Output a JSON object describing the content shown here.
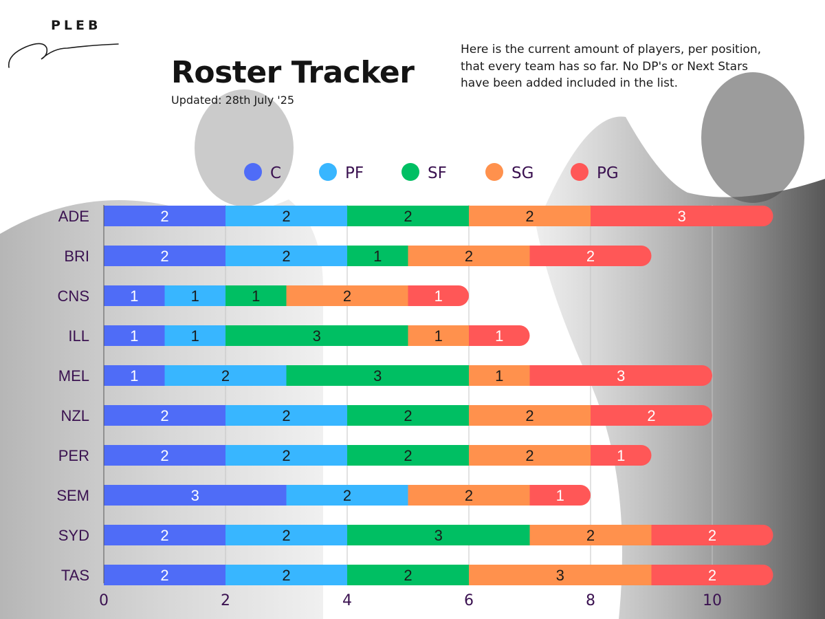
{
  "header": {
    "brand": "PLEB",
    "title": "Roster Tracker",
    "updated": "Updated: 28th July '25",
    "description_lines": [
      "Here is the current amount of players, per position,",
      "that every team has so far. No DP's or Next Stars",
      "have been added included in the list."
    ]
  },
  "chart_data": {
    "type": "bar",
    "orientation": "horizontal",
    "stacked": true,
    "title": "Roster Tracker",
    "legend_position": "top",
    "categories": [
      "ADE",
      "BRI",
      "CNS",
      "ILL",
      "MEL",
      "NZL",
      "PER",
      "SEM",
      "SYD",
      "TAS"
    ],
    "series": [
      {
        "name": "C",
        "color": "#4f6cf7",
        "values": [
          2,
          2,
          1,
          1,
          1,
          2,
          2,
          3,
          2,
          2
        ]
      },
      {
        "name": "PF",
        "color": "#38b6ff",
        "values": [
          2,
          2,
          1,
          1,
          2,
          2,
          2,
          2,
          2,
          2
        ]
      },
      {
        "name": "SF",
        "color": "#00bf63",
        "values": [
          2,
          1,
          1,
          3,
          3,
          2,
          2,
          0,
          3,
          2
        ]
      },
      {
        "name": "SG",
        "color": "#ff914d",
        "values": [
          2,
          2,
          2,
          1,
          1,
          2,
          2,
          2,
          2,
          3
        ]
      },
      {
        "name": "PG",
        "color": "#ff5757",
        "values": [
          3,
          2,
          1,
          1,
          3,
          2,
          1,
          1,
          2,
          2
        ]
      }
    ],
    "xlim": [
      0,
      11
    ],
    "xticks": [
      0,
      2,
      4,
      6,
      8,
      10
    ],
    "grid": true,
    "label_color_dark_segments": "#ffffff",
    "label_color_light_segments": "#1a1a1a",
    "tick_color": "#3a1150"
  }
}
